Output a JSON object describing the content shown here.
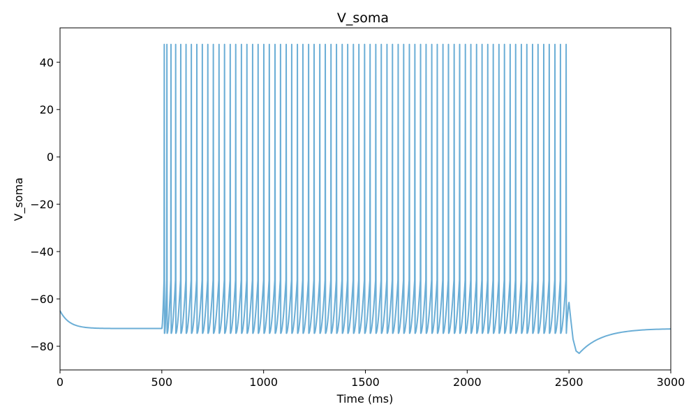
{
  "chart_data": {
    "type": "line",
    "title": "V_soma",
    "xlabel": "Time (ms)",
    "ylabel": "V_soma",
    "xlim": [
      0,
      3000
    ],
    "ylim": [
      -90,
      54.5
    ],
    "xticks": [
      0,
      500,
      1000,
      1500,
      2000,
      2500,
      3000
    ],
    "xtick_labels": [
      "0",
      "500",
      "1000",
      "1500",
      "2000",
      "2500",
      "3000"
    ],
    "yticks": [
      40,
      20,
      0,
      -20,
      -40,
      -60,
      -80
    ],
    "ytick_labels": [
      "40",
      "20",
      "0",
      "−20",
      "−40",
      "−60",
      "−80"
    ],
    "grid": false,
    "series": [
      {
        "color": "#6baed6",
        "resting_before_stimulus": -72.5,
        "stimulus_start": 500,
        "stimulus_end": 2500,
        "spike_peak": 47.5,
        "spike_trough": -74.5,
        "spike_times": [
          512,
          525,
          545,
          568,
          593,
          619,
          645,
          672,
          699,
          726,
          753,
          781,
          808,
          836,
          863,
          891,
          918,
          946,
          973,
          1001,
          1028,
          1056,
          1083,
          1111,
          1138,
          1166,
          1193,
          1221,
          1248,
          1276,
          1303,
          1331,
          1358,
          1386,
          1413,
          1441,
          1468,
          1496,
          1523,
          1551,
          1578,
          1606,
          1633,
          1661,
          1688,
          1716,
          1743,
          1771,
          1798,
          1826,
          1853,
          1881,
          1908,
          1936,
          1963,
          1991,
          2018,
          2046,
          2073,
          2101,
          2128,
          2156,
          2183,
          2211,
          2238,
          2266,
          2293,
          2321,
          2348,
          2376,
          2403,
          2431,
          2458,
          2486
        ],
        "afterhyperpolarization_min": -83,
        "afterhyperpolarization_time": 2550,
        "resting_after": -72.5
      }
    ]
  }
}
